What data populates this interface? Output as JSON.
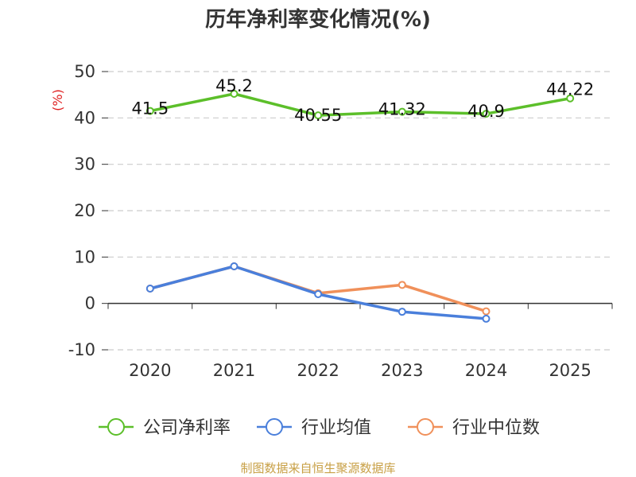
{
  "chart_data": {
    "type": "line",
    "title": "历年净利率变化情况(%)",
    "ylabel": "(%)",
    "xlabel": "",
    "categories": [
      "2020",
      "2021",
      "2022",
      "2023",
      "2024",
      "2025"
    ],
    "ylim": [
      -10,
      50
    ],
    "yticks": [
      -10,
      0,
      10,
      20,
      30,
      40,
      50
    ],
    "grid": true,
    "legend_position": "bottom",
    "series": [
      {
        "name": "公司净利率",
        "color": "#5cbf2a",
        "values": [
          41.5,
          45.2,
          40.55,
          41.32,
          40.9,
          44.22
        ],
        "labels": [
          "41.5",
          "45.2",
          "40.55",
          "41.32",
          "40.9",
          "44.22"
        ]
      },
      {
        "name": "行业均值",
        "color": "#4a7fdb",
        "values": [
          3.2,
          8.0,
          2.0,
          -1.8,
          -3.3,
          null
        ]
      },
      {
        "name": "行业中位数",
        "color": "#f0905a",
        "values": [
          3.2,
          8.0,
          2.2,
          4.0,
          -1.7,
          null
        ]
      }
    ],
    "source": "制图数据来自恒生聚源数据库"
  }
}
